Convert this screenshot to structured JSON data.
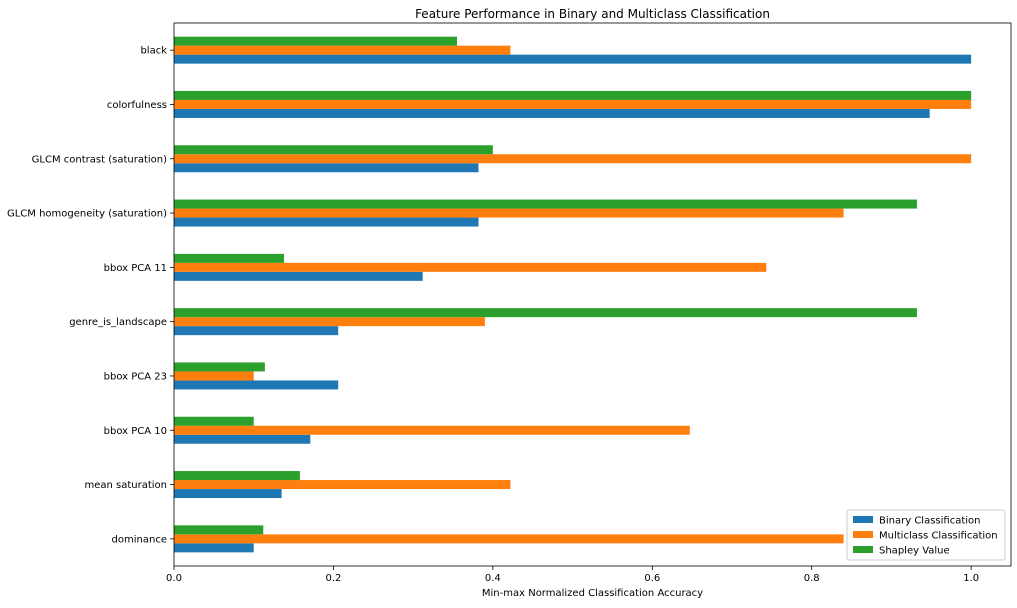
{
  "chart_data": {
    "type": "bar",
    "orientation": "horizontal",
    "title": "Feature Performance in Binary and Multiclass Classification",
    "xlabel": "Min-max Normalized Classification Accuracy",
    "ylabel": "",
    "xlim": [
      0,
      1.05
    ],
    "xticks": [
      0.0,
      0.2,
      0.4,
      0.6,
      0.8,
      1.0
    ],
    "xtick_labels": [
      "0.0",
      "0.2",
      "0.4",
      "0.6",
      "0.8",
      "1.0"
    ],
    "grid": false,
    "legend_position": "bottom-right",
    "categories": [
      "black",
      "colorfulness",
      "GLCM contrast (saturation)",
      "GLCM homogeneity (saturation)",
      "bbox PCA 11",
      "genre_is_landscape",
      "bbox PCA 23",
      "bbox PCA 10",
      "mean saturation",
      "dominance"
    ],
    "series": [
      {
        "name": "Binary Classification",
        "color": "#1f77b4",
        "values": [
          1.0,
          0.948,
          0.382,
          0.382,
          0.312,
          0.206,
          0.206,
          0.171,
          0.135,
          0.1
        ]
      },
      {
        "name": "Multiclass Classification",
        "color": "#ff7f0e",
        "values": [
          0.422,
          1.0,
          1.0,
          0.84,
          0.743,
          0.39,
          0.1,
          0.647,
          0.422,
          0.84
        ]
      },
      {
        "name": "Shapley Value",
        "color": "#2ca02c",
        "values": [
          0.355,
          1.0,
          0.4,
          0.932,
          0.138,
          0.932,
          0.114,
          0.1,
          0.158,
          0.112
        ]
      }
    ]
  }
}
